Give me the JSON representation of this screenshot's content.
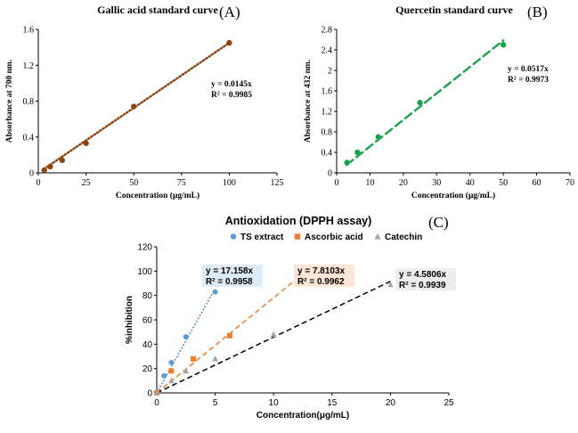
{
  "panel_letters": {
    "a": "(A)",
    "b": "(B)",
    "c": "(C)"
  },
  "chart_data": [
    {
      "id": "A",
      "type": "scatter",
      "title": "Gallic acid standard curve",
      "xlabel": "Concentration (μg/mL)",
      "ylabel": "Absorbance at 700 nm.",
      "xlim": [
        0,
        125
      ],
      "ylim": [
        0,
        1.6
      ],
      "xticks": [
        0,
        25,
        50,
        75,
        100,
        125
      ],
      "yticks": [
        0,
        0.4,
        0.8,
        1.2,
        1.6
      ],
      "color": "#8B4513",
      "trendline": {
        "style": "dotted",
        "slope": 0.0145,
        "x_range": [
          3,
          100
        ]
      },
      "equation": "y = 0.0145x",
      "r2": "R² = 0.9985",
      "series": [
        {
          "name": "Gallic acid",
          "x": [
            3.125,
            6.25,
            12.5,
            25,
            50,
            100
          ],
          "y": [
            0.03,
            0.07,
            0.14,
            0.33,
            0.74,
            1.45
          ]
        }
      ]
    },
    {
      "id": "B",
      "type": "scatter",
      "title": "Quercetin standard curve",
      "xlabel": "Concentration (μg/mL)",
      "ylabel": "Absorbance at 432 nm.",
      "xlim": [
        0,
        70
      ],
      "ylim": [
        0,
        2.8
      ],
      "xticks": [
        0,
        10,
        20,
        30,
        40,
        50,
        60,
        70
      ],
      "yticks": [
        0,
        0.4,
        0.8,
        1.2,
        1.6,
        2,
        2.4,
        2.8
      ],
      "color": "#1BA14B",
      "trendline": {
        "style": "dashed",
        "slope": 0.0517,
        "x_range": [
          3,
          50
        ]
      },
      "equation": "y = 0.0517x",
      "r2": "R² = 0.9973",
      "series": [
        {
          "name": "Quercetin",
          "x": [
            3.125,
            6.25,
            12.5,
            25,
            50
          ],
          "y": [
            0.2,
            0.4,
            0.7,
            1.37,
            2.5
          ]
        }
      ]
    },
    {
      "id": "C",
      "type": "scatter",
      "title": "Antioxidation (DPPH assay)",
      "xlabel": "Concentration(μg/mL)",
      "ylabel": "%inhibition",
      "xlim": [
        0,
        25
      ],
      "ylim": [
        0,
        120
      ],
      "xticks": [
        0,
        5,
        10,
        15,
        20,
        25
      ],
      "yticks": [
        0,
        20,
        40,
        60,
        80,
        100,
        120
      ],
      "legend_position": "top",
      "series": [
        {
          "name": "TS extract",
          "marker": "circle",
          "color": "#5B9BD5",
          "line_color": "#2E75B6",
          "line_style": "dotted",
          "slope": 17.158,
          "x_range": [
            0,
            4.8
          ],
          "x": [
            0,
            0.625,
            1.25,
            2.5,
            5
          ],
          "y": [
            0,
            14,
            25,
            46,
            83
          ],
          "equation": "y = 17.158x",
          "r2": "R² = 0.9958",
          "box_color": "#DDEBF7"
        },
        {
          "name": "Ascorbic acid",
          "marker": "square",
          "color": "#ED7D31",
          "line_color": "#ED7D31",
          "line_style": "dashed",
          "slope": 7.8103,
          "x_range": [
            0,
            12.5
          ],
          "x": [
            0,
            1.25,
            3.125,
            6.25,
            12.5
          ],
          "y": [
            0,
            18,
            28,
            47,
            97
          ],
          "equation": "y = 7.8103x",
          "r2": "R² = 0.9962",
          "box_color": "#FBE5D6"
        },
        {
          "name": "Catechin",
          "marker": "triangle",
          "color": "#A5A5A5",
          "line_color": "#000000",
          "line_style": "dashed",
          "slope": 4.5806,
          "x_range": [
            0,
            20
          ],
          "x": [
            0,
            1.25,
            2.5,
            5,
            10,
            20
          ],
          "y": [
            0,
            10,
            18,
            28,
            48,
            89
          ],
          "equation": "y = 4.5806x",
          "r2": "R² = 0.9939",
          "box_color": "#EDEDED"
        }
      ]
    }
  ]
}
